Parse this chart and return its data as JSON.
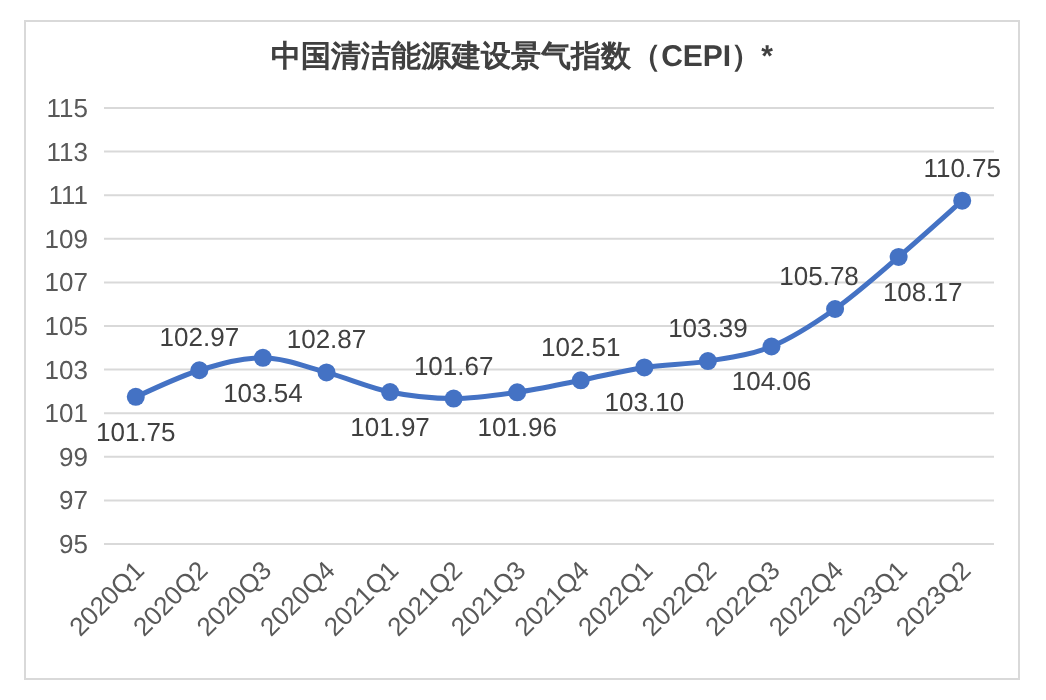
{
  "chart_data": {
    "type": "line",
    "title": "中国清洁能源建设景气指数（CEPI）*",
    "categories": [
      "2020Q1",
      "2020Q2",
      "2020Q3",
      "2020Q4",
      "2021Q1",
      "2021Q2",
      "2021Q3",
      "2021Q4",
      "2022Q1",
      "2022Q2",
      "2022Q3",
      "2022Q4",
      "2023Q1",
      "2023Q2"
    ],
    "series": [
      {
        "color": "#4472c4",
        "values": [
          101.75,
          102.97,
          103.54,
          102.87,
          101.97,
          101.67,
          101.96,
          102.51,
          103.1,
          103.39,
          104.06,
          105.78,
          108.17,
          110.75
        ],
        "value_labels": [
          "101.75",
          "102.97",
          "103.54",
          "102.87",
          "101.97",
          "101.67",
          "101.96",
          "102.51",
          "103.10",
          "103.39",
          "104.06",
          "105.78",
          "108.17",
          "110.75"
        ]
      }
    ],
    "ylim": [
      95,
      115
    ],
    "yticks": [
      95,
      97,
      99,
      101,
      103,
      105,
      107,
      109,
      111,
      113,
      115
    ],
    "grid": "y",
    "marker": "circle",
    "line_style": "solid"
  }
}
